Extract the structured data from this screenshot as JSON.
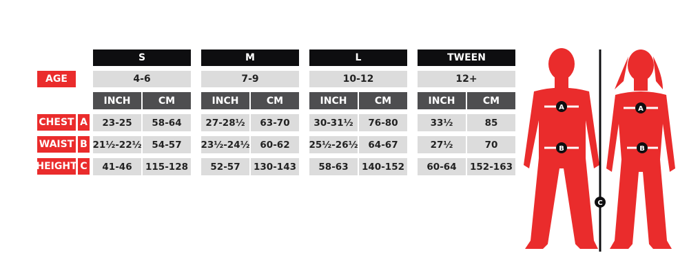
{
  "labels": {
    "age": "AGE",
    "chest": "CHEST",
    "waist": "WAIST",
    "height": "HEIGHT",
    "chest_letter": "A",
    "waist_letter": "B",
    "height_letter": "C"
  },
  "sizes": [
    {
      "name": "S",
      "age": "4-6",
      "inch_label": "INCH",
      "cm_label": "CM",
      "chest": [
        "23-25",
        "58-64"
      ],
      "waist": [
        "21½-22½",
        "54-57"
      ],
      "height": [
        "41-46",
        "115-128"
      ]
    },
    {
      "name": "M",
      "age": "7-9",
      "inch_label": "INCH",
      "cm_label": "CM",
      "chest": [
        "27-28½",
        "63-70"
      ],
      "waist": [
        "23½-24½",
        "60-62"
      ],
      "height": [
        "52-57",
        "130-143"
      ]
    },
    {
      "name": "L",
      "age": "10-12",
      "inch_label": "INCH",
      "cm_label": "CM",
      "chest": [
        "30-31½",
        "76-80"
      ],
      "waist": [
        "25½-26½",
        "64-67"
      ],
      "height": [
        "58-63",
        "140-152"
      ]
    },
    {
      "name": "TWEEN",
      "age": "12+",
      "inch_label": "INCH",
      "cm_label": "CM",
      "chest": [
        "33½",
        "85"
      ],
      "waist": [
        "27½",
        "70"
      ],
      "height": [
        "60-64",
        "152-163"
      ]
    }
  ],
  "figure": {
    "marker_a": "A",
    "marker_b": "B",
    "marker_c": "C"
  },
  "colors": {
    "red": "#ea2c2c",
    "black": "#0e0e10",
    "dark_gray": "#4e4e50",
    "light_gray": "#dcdcdc"
  }
}
